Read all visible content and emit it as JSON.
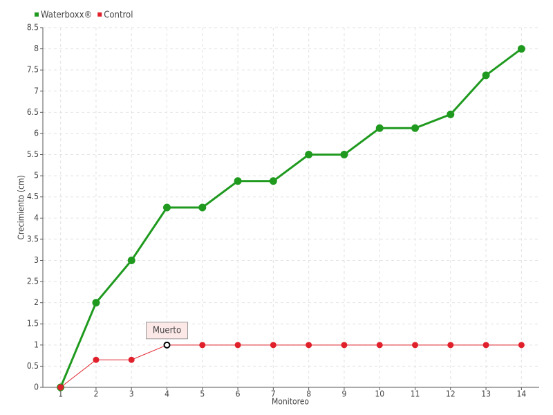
{
  "chart_data": {
    "type": "line",
    "x_label": "Monitoreo",
    "y_label": "Crecimiento (cm)",
    "categories": [
      "1",
      "2",
      "3",
      "4",
      "5",
      "6",
      "7",
      "8",
      "9",
      "10",
      "11",
      "12",
      "13",
      "14"
    ],
    "series": [
      {
        "name": "Waterboxx®",
        "color": "#1f9a1f",
        "values": [
          0,
          2,
          3,
          4.25,
          4.25,
          4.875,
          4.875,
          5.5,
          5.5,
          6.125,
          6.125,
          6.45,
          7.375,
          8
        ]
      },
      {
        "name": "Control",
        "color": "#e0202a",
        "values": [
          0,
          0.65,
          0.65,
          1,
          1,
          1,
          1,
          1,
          1,
          1,
          1,
          1,
          1,
          1
        ],
        "point_labels": [
          null,
          null,
          null,
          "Muerto",
          null,
          null,
          null,
          null,
          null,
          null,
          null,
          null,
          null,
          null
        ]
      }
    ],
    "ylim": [
      0,
      8.5
    ],
    "yticks": [
      0,
      0.5,
      1,
      1.5,
      2,
      2.5,
      3,
      3.5,
      4,
      4.5,
      5,
      5.5,
      6,
      6.5,
      7,
      7.5,
      8,
      8.5
    ],
    "grid": true,
    "legend": "top-left"
  }
}
